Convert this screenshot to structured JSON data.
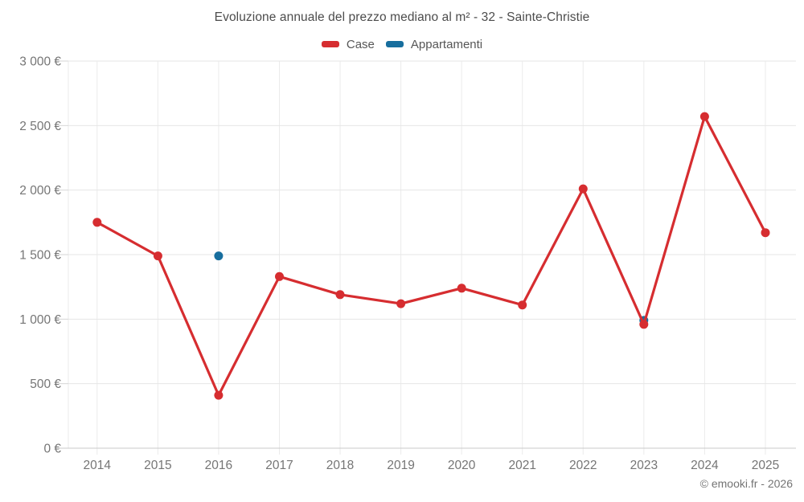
{
  "title": "Evoluzione annuale del prezzo mediano al m² - 32 - Sainte-Christie",
  "footer": "© emooki.fr - 2026",
  "chart_data": {
    "type": "line",
    "title": "Evoluzione annuale del prezzo mediano al m² - 32 - Sainte-Christie",
    "categories": [
      "2014",
      "2015",
      "2016",
      "2017",
      "2018",
      "2019",
      "2020",
      "2021",
      "2022",
      "2023",
      "2024",
      "2025"
    ],
    "series": [
      {
        "name": "Case",
        "color": "#d62d30",
        "values": [
          1750,
          1490,
          410,
          1330,
          1190,
          1120,
          1240,
          1110,
          2010,
          960,
          2570,
          1670
        ]
      },
      {
        "name": "Appartamenti",
        "color": "#176e9e",
        "values": [
          null,
          null,
          1490,
          null,
          null,
          null,
          null,
          null,
          null,
          990,
          null,
          null
        ]
      }
    ],
    "ylabel": "",
    "xlabel": "",
    "ylim": [
      0,
      3000
    ],
    "ytick_step": 500,
    "ytick_labels": [
      "0 €",
      "500 €",
      "1 000 €",
      "1 500 €",
      "2 000 €",
      "2 500 €",
      "3 000 €"
    ],
    "grid": true,
    "legend_position": "top",
    "footer": "© emooki.fr - 2026"
  }
}
